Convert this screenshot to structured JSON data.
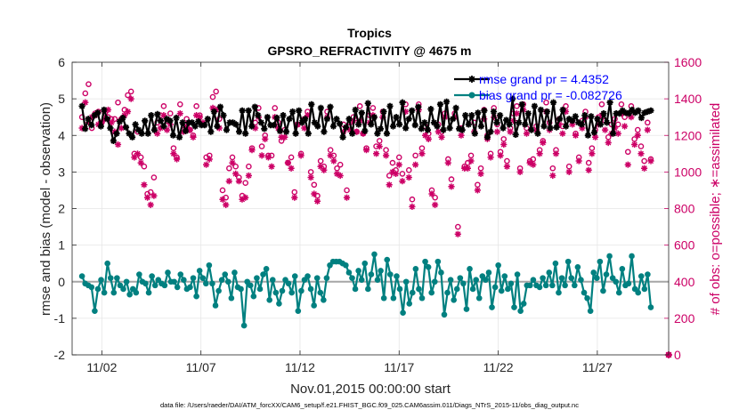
{
  "chart_data": {
    "type": "line",
    "title": "Tropics",
    "subtitle": "GPSRO_REFRACTIVITY @ 4675 m",
    "xlabel": "Nov.01,2015 00:00:00 start",
    "ylabel_left": "rmse and bias (model - observation)",
    "ylabel_right": "# of obs: o=possible; ∗=assimilated",
    "footnote": "data file: /Users/raeder/DAI/ATM_forcXX/CAM6_setup/f.e21.FHIST_BGC.f09_025.CAM6assim.011/Diags_NTrS_2015-11/obs_diag_output.nc",
    "xlim": [
      0.5,
      30.6
    ],
    "ylim_left": [
      -2,
      6
    ],
    "ylim_right": [
      0,
      1600
    ],
    "x_ticks": [
      2,
      7,
      12,
      17,
      22,
      27
    ],
    "x_tick_labels": [
      "11/02",
      "11/07",
      "11/12",
      "11/17",
      "11/22",
      "11/27"
    ],
    "y_left_ticks": [
      -2,
      -1,
      0,
      1,
      2,
      3,
      4,
      5,
      6
    ],
    "y_left_tick_labels": [
      "-2",
      "-1",
      "0",
      "1",
      "2",
      "3",
      "4",
      "5",
      "6"
    ],
    "y_right_ticks": [
      0,
      200,
      400,
      600,
      800,
      1000,
      1200,
      1400,
      1600
    ],
    "y_right_tick_labels": [
      "0",
      "200",
      "400",
      "600",
      "800",
      "1000",
      "1200",
      "1400",
      "1600"
    ],
    "legend": [
      {
        "label": "rmse grand pr = 4.4352",
        "color": "#000000"
      },
      {
        "label": "bias grand pr = -0.082726",
        "color": "#008080"
      }
    ],
    "series": [
      {
        "name": "rmse",
        "axis": "left",
        "color": "#000000",
        "marker": "star",
        "values": [
          4.8,
          4.18,
          4.45,
          4.28,
          4.55,
          4.62,
          4.25,
          4.7,
          4.45,
          4.2,
          3.85,
          4.05,
          4.38,
          4.48,
          4.22,
          4.05,
          3.95,
          4.3,
          4.15,
          4.05,
          4.4,
          4.05,
          4.55,
          4.15,
          4.58,
          4.4,
          4.25,
          4.45,
          4.4,
          4.0,
          4.48,
          3.95,
          4.35,
          4.12,
          4.35,
          4.35,
          4.25,
          4.38,
          4.28,
          4.28,
          4.45,
          4.1,
          4.65,
          4.25,
          4.78,
          4.55,
          4.15,
          4.35,
          4.35,
          4.3,
          4.1,
          4.68,
          4.05,
          4.68,
          4.25,
          4.78,
          4.55,
          4.35,
          4.18,
          4.5,
          4.28,
          4.28,
          4.48,
          4.12,
          4.55,
          4.1,
          4.45,
          4.65,
          4.05,
          4.68,
          4.35,
          4.45,
          4.05,
          4.85,
          4.35,
          4.25,
          4.75,
          4.1,
          4.45,
          4.78,
          4.25,
          4.45,
          4.32,
          3.95,
          4.22,
          4.45,
          4.05,
          4.7,
          4.3,
          4.62,
          4.12,
          4.88,
          4.3,
          4.5,
          4.05,
          4.18,
          4.65,
          4.05,
          4.8,
          4.25,
          4.5,
          4.3,
          4.9,
          4.2,
          4.45,
          4.68,
          4.28,
          4.78,
          4.18,
          4.35,
          4.15,
          4.72,
          4.35,
          4.25,
          4.85,
          4.15,
          4.92,
          4.2,
          4.45,
          4.75,
          4.18,
          4.15,
          4.55,
          4.3,
          4.55,
          4.05,
          4.62,
          4.25,
          4.68,
          3.95,
          4.1,
          4.65,
          4.35,
          4.55,
          4.2,
          4.42,
          4.3,
          5.0,
          4.02,
          4.35,
          4.85,
          4.3,
          4.6,
          4.15,
          4.8,
          4.05,
          4.7,
          4.25,
          4.65,
          4.2,
          4.9,
          4.22,
          4.45,
          4.7,
          4.25,
          4.45,
          4.4,
          4.52,
          4.35,
          4.3,
          4.55,
          4.0,
          4.52,
          4.08,
          4.45,
          4.3,
          4.6,
          4.35,
          4.9,
          4.05,
          4.6,
          4.6,
          4.68,
          4.62,
          4.6,
          4.7,
          4.62,
          4.68,
          4.48,
          4.62,
          4.65,
          4.68
        ]
      },
      {
        "name": "bias",
        "axis": "left",
        "color": "#008080",
        "marker": "circle",
        "values": [
          0.15,
          -0.05,
          -0.1,
          -0.15,
          -0.8,
          -0.2,
          0.05,
          -0.3,
          0.5,
          0.1,
          -0.3,
          0.1,
          -0.1,
          -0.2,
          0.0,
          -0.35,
          -0.2,
          -0.3,
          0.2,
          0.0,
          -0.05,
          -0.3,
          0.15,
          -0.1,
          0.05,
          -0.05,
          -0.1,
          0.25,
          0.0,
          0.0,
          -0.15,
          0.2,
          0.05,
          -0.2,
          -0.15,
          0.1,
          -0.4,
          0.3,
          0.1,
          -0.05,
          0.45,
          -0.05,
          -0.65,
          -0.25,
          0.05,
          0.2,
          0.0,
          -0.45,
          0.25,
          -0.15,
          -0.2,
          -1.2,
          0.0,
          -0.1,
          -0.4,
          0.1,
          -0.2,
          0.2,
          0.35,
          -0.5,
          0.05,
          -0.3,
          -0.6,
          -0.25,
          0.05,
          -0.05,
          -0.3,
          0.15,
          -0.8,
          -0.25,
          0.05,
          0.15,
          -0.2,
          -0.65,
          0.1,
          -0.3,
          -0.5,
          0.1,
          0.45,
          0.55,
          0.55,
          0.55,
          0.5,
          0.45,
          0.25,
          0.1,
          -0.2,
          0.3,
          0.05,
          0.5,
          -0.2,
          0.2,
          0.75,
          0.05,
          0.3,
          -0.45,
          0.6,
          0.2,
          -0.45,
          0.15,
          -0.2,
          -0.85,
          0.0,
          -0.6,
          -0.3,
          0.35,
          -0.2,
          -0.45,
          0.55,
          0.4,
          -0.3,
          0.0,
          0.55,
          0.25,
          -0.9,
          -0.3,
          0.05,
          -0.5,
          -0.2,
          0.1,
          -0.05,
          -0.75,
          0.35,
          -0.2,
          0.05,
          -0.45,
          0.15,
          0.05,
          0.25,
          -0.7,
          -0.15,
          0.45,
          -0.25,
          0.15,
          -0.2,
          -0.05,
          -0.7,
          0.2,
          -0.8,
          -0.6,
          -0.1,
          -0.1,
          0.05,
          -0.1,
          -0.15,
          0.1,
          -0.1,
          0.25,
          -0.1,
          0.5,
          -0.3,
          0.1,
          -0.1,
          0.55,
          0.1,
          -0.1,
          0.4,
          0.05,
          -0.3,
          -0.45,
          -0.8,
          0.25,
          0.1,
          0.55,
          -0.25,
          0.2,
          0.7,
          0.1,
          0.0,
          -0.3,
          0.35,
          -0.1,
          -0.05,
          0.7,
          -0.2,
          -0.3,
          0.15,
          -0.2,
          0.2,
          -0.7
        ]
      },
      {
        "name": "obs possible",
        "axis": "right",
        "color": "#cc0066",
        "marker": "o",
        "values": [
          1300,
          1430,
          1480,
          1240,
          1320,
          1330,
          1270,
          1320,
          1300,
          1290,
          1290,
          1380,
          1290,
          1340,
          1420,
          1440,
          1100,
          1220,
          1080,
          1030,
          880,
          890,
          970,
          1270,
          1310,
          1360,
          1280,
          1320,
          1130,
          1080,
          1370,
          1230,
          1290,
          1230,
          1200,
          1360,
          1310,
          1260,
          1080,
          1090,
          1410,
          1440,
          1290,
          900,
          860,
          1020,
          1080,
          1030,
          970,
          870,
          940,
          1030,
          1130,
          1270,
          1350,
          1140,
          1200,
          1090,
          1090,
          1350,
          1270,
          1170,
          1230,
          1050,
          1080,
          890,
          1260,
          1100,
          1290,
          1330,
          1000,
          930,
          870,
          1060,
          1030,
          1330,
          1120,
          1090,
          1020,
          1040,
          1260,
          900,
          1270,
          1300,
          1220,
          1360,
          1210,
          1130,
          1310,
          1350,
          1140,
          1170,
          1330,
          1120,
          980,
          1050,
          1010,
          1080,
          990,
          1370,
          1010,
          850,
          1090,
          1370,
          1130,
          1250,
          1210,
          900,
          860,
          1260,
          1220,
          1320,
          1070,
          960,
          1320,
          700,
          1240,
          1030,
          1050,
          1090,
          1270,
          930,
          1020,
          1340,
          1200,
          1100,
          1350,
          1260,
          1110,
          1180,
          1060,
          1240,
          1320,
          1360,
          1020,
          1370,
          1240,
          1060,
          1070,
          1250,
          1120,
          1170,
          1380,
          1270,
          1020,
          1120,
          1290,
          1250,
          1360,
          1030,
          1280,
          1210,
          1080,
          1280,
          1330,
          1050,
          1130,
          1230,
          1300,
          1370,
          1280,
          1190,
          1260,
          1290,
          1260,
          1370,
          1300,
          1110,
          1360,
          1180,
          1230,
          1140,
          1060,
          1270,
          1070
        ]
      },
      {
        "name": "obs assimilated",
        "axis": "right",
        "color": "#cc0066",
        "marker": "*",
        "values": [
          1240,
          1380,
          1270,
          1300,
          1310,
          1260,
          1270,
          1290,
          1340,
          1270,
          1220,
          1150,
          1240,
          1310,
          1330,
          1400,
          1080,
          1100,
          1050,
          930,
          860,
          820,
          870,
          1210,
          1240,
          1310,
          1230,
          1260,
          1100,
          1070,
          1320,
          1220,
          1250,
          1230,
          1190,
          1310,
          1300,
          1270,
          1040,
          1070,
          1350,
          1340,
          1240,
          850,
          820,
          950,
          1050,
          990,
          950,
          850,
          860,
          980,
          1120,
          1240,
          1300,
          1090,
          1180,
          1080,
          1030,
          1300,
          1240,
          1190,
          1190,
          1050,
          1020,
          860,
          1260,
          1090,
          1240,
          1310,
          970,
          880,
          840,
          1030,
          1010,
          1300,
          1090,
          1060,
          990,
          980,
          1220,
          860,
          1230,
          1280,
          1220,
          1280,
          1210,
          1120,
          1270,
          1310,
          1100,
          1140,
          1300,
          1090,
          930,
          1000,
          990,
          1040,
          950,
          1330,
          970,
          810,
          1040,
          1340,
          1100,
          1200,
          1180,
          880,
          820,
          1220,
          1190,
          1300,
          1050,
          920,
          1300,
          660,
          1200,
          1020,
          1020,
          1060,
          1220,
          900,
          990,
          1290,
          1180,
          1080,
          1300,
          1220,
          1090,
          1150,
          1030,
          1220,
          1280,
          1320,
          1000,
          1340,
          1210,
          1050,
          1040,
          1230,
          1100,
          1160,
          1330,
          1230,
          980,
          1100,
          1260,
          1210,
          1330,
          1000,
          1260,
          1200,
          1060,
          1240,
          1300,
          1010,
          1100,
          1190,
          1260,
          1310,
          1230,
          1160,
          1210,
          1240,
          1210,
          1320,
          1250,
          1040,
          1300,
          1150,
          1200,
          1100,
          1020,
          1230,
          1060
        ]
      }
    ]
  }
}
